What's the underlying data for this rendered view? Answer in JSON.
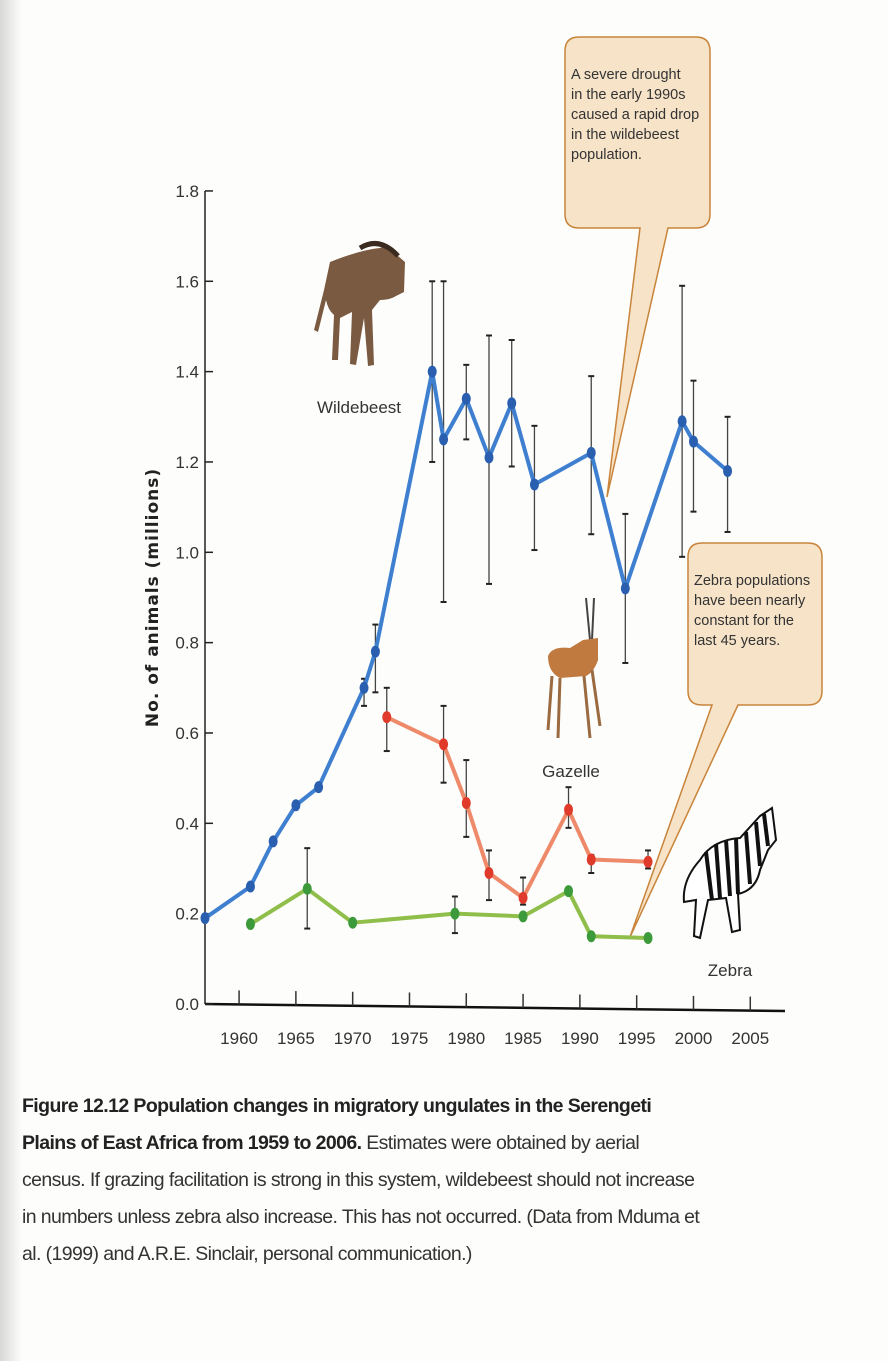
{
  "chart_data": {
    "type": "line",
    "ylabel": "No. of animals (millions)",
    "xlabel": "",
    "xlim": [
      1957,
      2008
    ],
    "ylim": [
      0,
      1.8
    ],
    "xticks": [
      "1960",
      "1965",
      "1970",
      "1975",
      "1980",
      "1985",
      "1990",
      "1995",
      "2000",
      "2005"
    ],
    "yticks": [
      "0.0",
      "0.2",
      "0.4",
      "0.6",
      "0.8",
      "1.0",
      "1.2",
      "1.4",
      "1.6",
      "1.8"
    ],
    "grid": false,
    "series": [
      {
        "name": "Wildebeest",
        "color": "#3f7fd0",
        "marker_color": "#2a5fb0",
        "points": [
          {
            "x": 1957,
            "y": 0.19
          },
          {
            "x": 1961,
            "y": 0.26
          },
          {
            "x": 1963,
            "y": 0.36
          },
          {
            "x": 1965,
            "y": 0.44
          },
          {
            "x": 1967,
            "y": 0.48
          },
          {
            "x": 1971,
            "y": 0.7,
            "lo": 0.66,
            "hi": 0.72
          },
          {
            "x": 1972,
            "y": 0.78,
            "lo": 0.69,
            "hi": 0.84
          },
          {
            "x": 1977,
            "y": 1.4,
            "lo": 1.2,
            "hi": 1.6
          },
          {
            "x": 1978,
            "y": 1.25,
            "lo": 0.89,
            "hi": 1.6
          },
          {
            "x": 1980,
            "y": 1.34,
            "lo": 1.25,
            "hi": 1.415
          },
          {
            "x": 1982,
            "y": 1.21,
            "lo": 0.93,
            "hi": 1.48
          },
          {
            "x": 1984,
            "y": 1.33,
            "lo": 1.19,
            "hi": 1.47
          },
          {
            "x": 1986,
            "y": 1.15,
            "lo": 1.005,
            "hi": 1.28
          },
          {
            "x": 1991,
            "y": 1.22,
            "lo": 1.04,
            "hi": 1.39
          },
          {
            "x": 1994,
            "y": 0.92,
            "lo": 0.755,
            "hi": 1.085
          },
          {
            "x": 1999,
            "y": 1.29,
            "lo": 0.99,
            "hi": 1.59
          },
          {
            "x": 2000,
            "y": 1.245,
            "lo": 1.09,
            "hi": 1.38
          },
          {
            "x": 2003,
            "y": 1.18,
            "lo": 1.045,
            "hi": 1.3
          }
        ]
      },
      {
        "name": "Gazelle",
        "color": "#ee8a6a",
        "marker_color": "#e03a2a",
        "points": [
          {
            "x": 1973,
            "y": 0.635,
            "lo": 0.56,
            "hi": 0.7
          },
          {
            "x": 1978,
            "y": 0.575,
            "lo": 0.49,
            "hi": 0.66
          },
          {
            "x": 1980,
            "y": 0.445,
            "lo": 0.37,
            "hi": 0.54
          },
          {
            "x": 1982,
            "y": 0.29,
            "lo": 0.23,
            "hi": 0.34
          },
          {
            "x": 1985,
            "y": 0.235,
            "lo": 0.22,
            "hi": 0.28
          },
          {
            "x": 1989,
            "y": 0.43,
            "lo": 0.39,
            "hi": 0.48
          },
          {
            "x": 1991,
            "y": 0.32,
            "lo": 0.29,
            "hi": 0.33
          },
          {
            "x": 1996,
            "y": 0.315,
            "lo": 0.3,
            "hi": 0.34
          }
        ]
      },
      {
        "name": "Zebra",
        "color": "#8fbf4a",
        "marker_color": "#3d9a3a",
        "points": [
          {
            "x": 1961,
            "y": 0.177
          },
          {
            "x": 1966,
            "y": 0.255,
            "lo": 0.167,
            "hi": 0.345
          },
          {
            "x": 1970,
            "y": 0.18
          },
          {
            "x": 1979,
            "y": 0.2,
            "lo": 0.157,
            "hi": 0.238
          },
          {
            "x": 1985,
            "y": 0.194
          },
          {
            "x": 1989,
            "y": 0.25
          },
          {
            "x": 1991,
            "y": 0.15
          },
          {
            "x": 1996,
            "y": 0.146
          }
        ]
      }
    ],
    "annotations": [
      {
        "id": "drought",
        "lines": [
          "A severe drought",
          "in the early 1990s",
          "caused a rapid drop",
          "in the wildebeest",
          "population."
        ],
        "target": {
          "x": 1992.5,
          "y": 1.1
        }
      },
      {
        "id": "zebra",
        "lines": [
          "Zebra populations",
          "have been nearly",
          "constant for the",
          "last 45 years."
        ],
        "target": {
          "x": 1995,
          "y": 0.15
        }
      }
    ],
    "colors": {
      "callout_fill": "#f6e3c8",
      "callout_border": "#c8843a"
    }
  },
  "caption": {
    "bold": "Figure 12.12 Population changes in migratory ungulates in the Serengeti Plains of East Africa from 1959 to 2006.",
    "text": " Estimates were obtained by aerial census. If grazing facilitation is strong in this system, wildebeest should not increase in numbers unless zebra also increase. This has not occurred. (Data from Mduma et al. (1999) and A.R.E. Sinclair, personal communication.)"
  }
}
